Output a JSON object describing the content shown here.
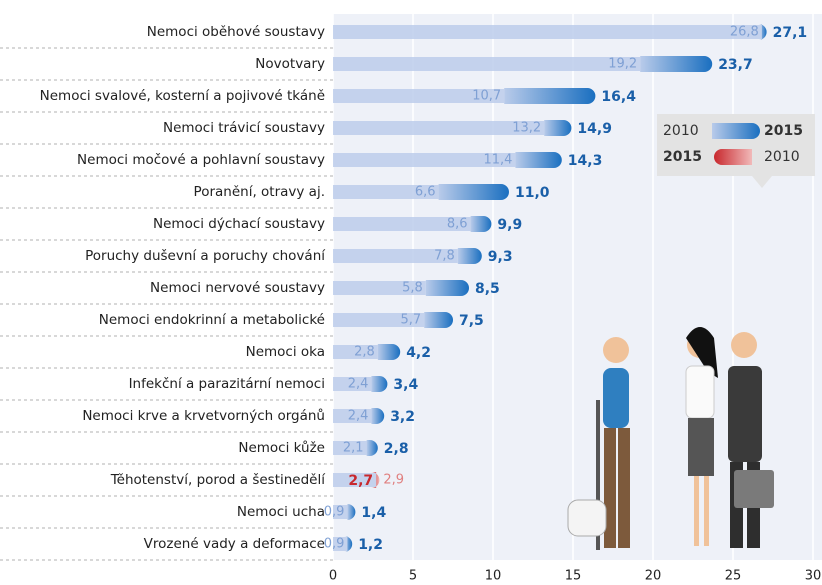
{
  "chart_data": {
    "type": "dumbbell-bar",
    "categories": [
      "Nemoci oběhové soustavy",
      "Novotvary",
      "Nemoci svalové, kosterní a pojivové tkáně",
      "Nemoci trávicí soustavy",
      "Nemoci močové a pohlavní soustavy",
      "Poranění, otravy aj.",
      "Nemoci dýchací soustavy",
      "Poruchy duševní a poruchy chování",
      "Nemoci nervové soustavy",
      "Nemoci endokrinní a metabolické",
      "Nemoci oka",
      "Infekční a parazitární nemoci",
      "Nemoci krve a krvetvorných orgánů",
      "Nemoci kůže",
      "Těhotenství, porod a šestinedělí",
      "Nemoci ucha",
      "Vrozené vady a deformace"
    ],
    "series": [
      {
        "name": "2010",
        "color": "#b9cbea",
        "values": [
          26.8,
          19.2,
          10.7,
          13.2,
          11.4,
          6.6,
          8.6,
          7.8,
          5.8,
          5.7,
          2.8,
          2.4,
          2.4,
          2.1,
          2.9,
          0.9,
          0.9
        ],
        "value_labels": [
          "26,8",
          "19,2",
          "10,7",
          "13,2",
          "11,4",
          "6,6",
          "8,6",
          "7,8",
          "5,8",
          "5,7",
          "2,8",
          "2,4",
          "2,4",
          "2,1",
          "2,9",
          "0,9",
          "0,9"
        ]
      },
      {
        "name": "2015",
        "color": "#1a6fc0",
        "values": [
          27.1,
          23.7,
          16.4,
          14.9,
          14.3,
          11.0,
          9.9,
          9.3,
          8.5,
          7.5,
          4.2,
          3.4,
          3.2,
          2.8,
          2.7,
          1.4,
          1.2
        ],
        "value_labels": [
          "27,1",
          "23,7",
          "16,4",
          "14,9",
          "14,3",
          "11,0",
          "9,9",
          "9,3",
          "8,5",
          "7,5",
          "4,2",
          "3,4",
          "3,2",
          "2,8",
          "2,7",
          "1,4",
          "1,2"
        ]
      }
    ],
    "decrease_color": "#c8282d",
    "xlim": [
      0,
      30
    ],
    "xticks": [
      0,
      5,
      10,
      15,
      20,
      25,
      30
    ],
    "grid": true
  }
}
